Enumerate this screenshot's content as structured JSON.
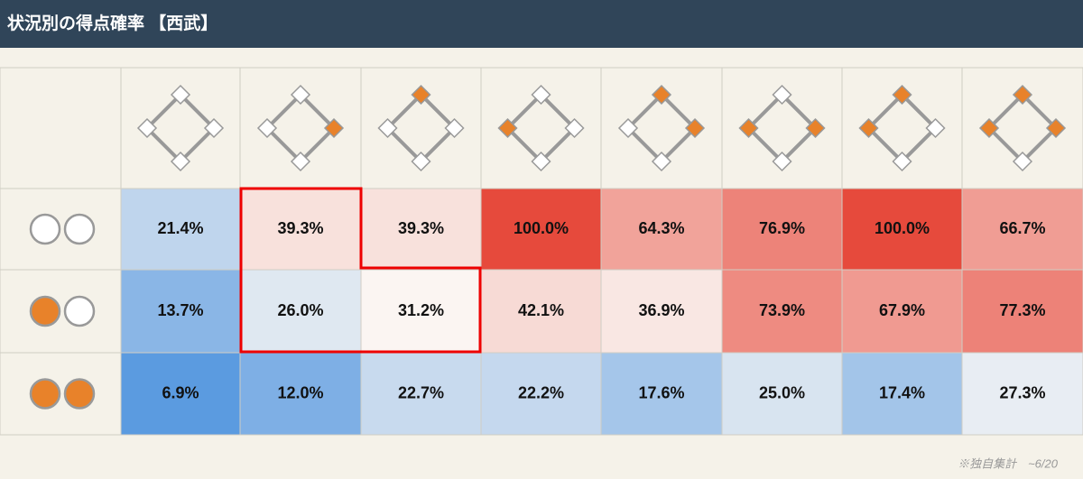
{
  "header": {
    "title": "状況別の得点確率 【西武】"
  },
  "table": {
    "rows": [
      [
        "21.4%",
        "39.3%",
        "39.3%",
        "100.0%",
        "64.3%",
        "76.9%",
        "100.0%",
        "66.7%"
      ],
      [
        "13.7%",
        "26.0%",
        "31.2%",
        "42.1%",
        "36.9%",
        "73.9%",
        "67.9%",
        "77.3%"
      ],
      [
        "6.9%",
        "12.0%",
        "22.7%",
        "22.2%",
        "17.6%",
        "25.0%",
        "17.4%",
        "27.3%"
      ]
    ]
  },
  "footnote": "※独自集計　~6/20"
}
